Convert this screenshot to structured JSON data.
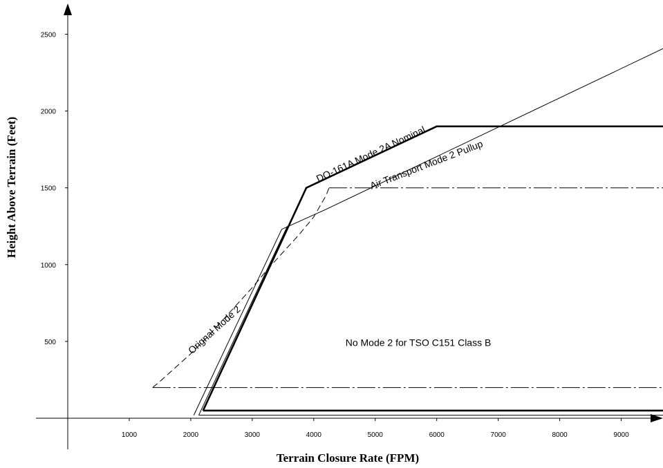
{
  "chart_data": {
    "type": "line",
    "title": "",
    "xlabel": "Terrain Closure Rate (FPM)",
    "ylabel": "Height Above Terrain (Feet)",
    "xlim": [
      0,
      9700
    ],
    "ylim": [
      0,
      2500
    ],
    "x_ticks": [
      1000,
      2000,
      3000,
      4000,
      5000,
      6000,
      7000,
      8000,
      9000
    ],
    "y_ticks": [
      500,
      1000,
      1500,
      2000,
      2500
    ],
    "grid": false,
    "legend": "none",
    "series": [
      {
        "label": "DO-161A Mode 2A Nominal",
        "style": "thick-solid",
        "points": [
          [
            2200,
            50
          ],
          [
            3880,
            1500
          ],
          [
            6000,
            1900
          ],
          [
            9700,
            1900
          ]
        ]
      },
      {
        "label": "Air Transport Mode 2 Pullup",
        "style": "thin-solid",
        "points": [
          [
            3480,
            1230
          ],
          [
            4200,
            1360
          ],
          [
            9700,
            2410
          ]
        ]
      },
      {
        "label": "Orignal Mode 2",
        "style": "dashed",
        "points": [
          [
            1380,
            200
          ],
          [
            1500,
            240
          ],
          [
            1750,
            330
          ],
          [
            2000,
            420
          ],
          [
            2250,
            520
          ],
          [
            2500,
            630
          ],
          [
            2750,
            740
          ],
          [
            3000,
            850
          ],
          [
            3250,
            970
          ],
          [
            3500,
            1080
          ],
          [
            3750,
            1190
          ],
          [
            4000,
            1310
          ],
          [
            4200,
            1450
          ],
          [
            4250,
            1500
          ]
        ]
      },
      {
        "label": "",
        "style": "dash-dot",
        "points": [
          [
            4250,
            1500
          ],
          [
            9700,
            1500
          ]
        ]
      },
      {
        "label": "",
        "style": "dash-dot",
        "points": [
          [
            1380,
            200
          ],
          [
            9700,
            200
          ]
        ]
      },
      {
        "label": "",
        "style": "thin-solid",
        "points": [
          [
            2050,
            20
          ],
          [
            3480,
            1230
          ]
        ]
      },
      {
        "label": "",
        "style": "thin-solid",
        "points": [
          [
            2130,
            20
          ],
          [
            3570,
            1250
          ]
        ]
      },
      {
        "label": "",
        "style": "thin-solid",
        "points": [
          [
            2130,
            20
          ],
          [
            9700,
            20
          ]
        ]
      },
      {
        "label": "",
        "style": "thick-solid",
        "points": [
          [
            2200,
            50
          ],
          [
            9700,
            50
          ]
        ]
      }
    ],
    "annotations": [
      {
        "text": "DO-161A Mode 2A Nominal",
        "x": 4950,
        "y": 1700,
        "angle": -25
      },
      {
        "text": "Air Transport Mode 2 Pullup",
        "x": 5850,
        "y": 1630,
        "angle": -21
      },
      {
        "text": "Orignal Mode 2",
        "x": 2420,
        "y": 560,
        "angle": -42
      },
      {
        "text": "No Mode 2 for TSO C151 Class B",
        "x": 5700,
        "y": 470,
        "angle": 0
      }
    ]
  }
}
